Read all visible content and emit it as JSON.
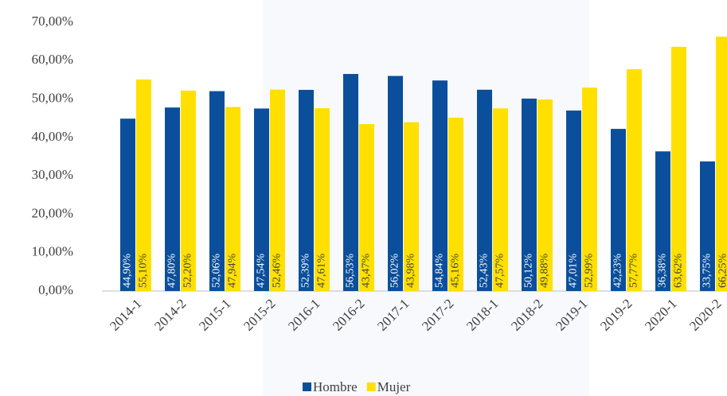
{
  "chart_data": {
    "type": "bar",
    "categories": [
      "2014-1",
      "2014-2",
      "2015-1",
      "2015-2",
      "2016-1",
      "2016-2",
      "2017-1",
      "2017-2",
      "2018-1",
      "2018-2",
      "2019-1",
      "2019-2",
      "2020-1",
      "2020-2"
    ],
    "series": [
      {
        "name": "Hombre",
        "color": "#0b4f9c",
        "values": [
          44.9,
          47.8,
          52.06,
          47.54,
          52.39,
          56.53,
          56.02,
          54.84,
          52.43,
          50.12,
          47.01,
          42.23,
          36.38,
          33.75
        ],
        "value_labels": [
          "44,90%",
          "47,80%",
          "52,06%",
          "47,54%",
          "52,39%",
          "56,53%",
          "56,02%",
          "54,84%",
          "52,43%",
          "50,12%",
          "47,01%",
          "42,23%",
          "36,38%",
          "33,75%"
        ]
      },
      {
        "name": "Mujer",
        "color": "#ffe000",
        "values": [
          55.1,
          52.2,
          47.94,
          52.46,
          47.61,
          43.47,
          43.98,
          45.16,
          47.57,
          49.88,
          52.99,
          57.77,
          63.62,
          66.25
        ],
        "value_labels": [
          "55,10%",
          "52,20%",
          "47,94%",
          "52,46%",
          "47,61%",
          "43,47%",
          "43,98%",
          "45,16%",
          "47,57%",
          "49,88%",
          "52,99%",
          "57,77%",
          "63,62%",
          "66,25%"
        ]
      }
    ],
    "ylim": [
      0,
      70
    ],
    "yticks": [
      {
        "value": 0,
        "label": "0,00%"
      },
      {
        "value": 10,
        "label": "10,00%"
      },
      {
        "value": 20,
        "label": "20,00%"
      },
      {
        "value": 30,
        "label": "30,00%"
      },
      {
        "value": 40,
        "label": "40,00%"
      },
      {
        "value": 50,
        "label": "50,00%"
      },
      {
        "value": 60,
        "label": "60,00%"
      },
      {
        "value": 70,
        "label": "70,00%"
      }
    ],
    "legend": "bottom"
  }
}
